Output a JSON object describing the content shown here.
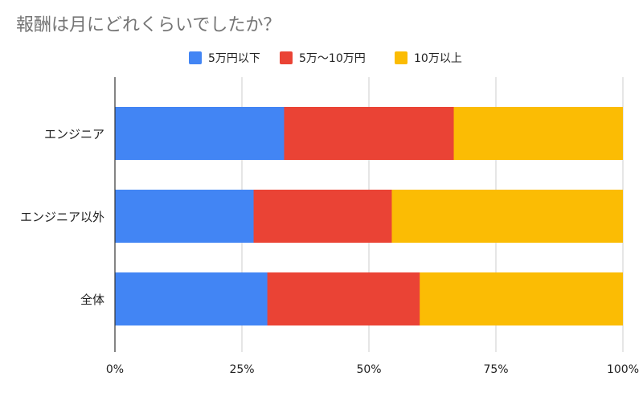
{
  "chart_data": {
    "type": "bar",
    "orientation": "horizontal",
    "stacking": "percent",
    "title": "報酬は月にどれくらいでしたか？",
    "categories": [
      "エンジニア",
      "エンジニア以外",
      "全体"
    ],
    "series": [
      {
        "name": "5万円以下",
        "color": "#4285f4",
        "values": [
          33.3,
          27.3,
          30.0
        ]
      },
      {
        "name": "5万〜10万円",
        "color": "#ea4335",
        "values": [
          33.4,
          27.2,
          30.0
        ]
      },
      {
        "name": "10万以上",
        "color": "#fbbc04",
        "values": [
          33.3,
          45.5,
          40.0
        ]
      }
    ],
    "xlim": [
      0,
      100
    ],
    "x_ticks": [
      0,
      25,
      50,
      75,
      100
    ],
    "x_tick_labels": [
      "0%",
      "25%",
      "50%",
      "75%",
      "100%"
    ],
    "grid": true,
    "legend_position": "top",
    "colors": {
      "title": "#757575",
      "text": "#222222",
      "grid": "#cccccc",
      "axis": "#333333"
    }
  }
}
